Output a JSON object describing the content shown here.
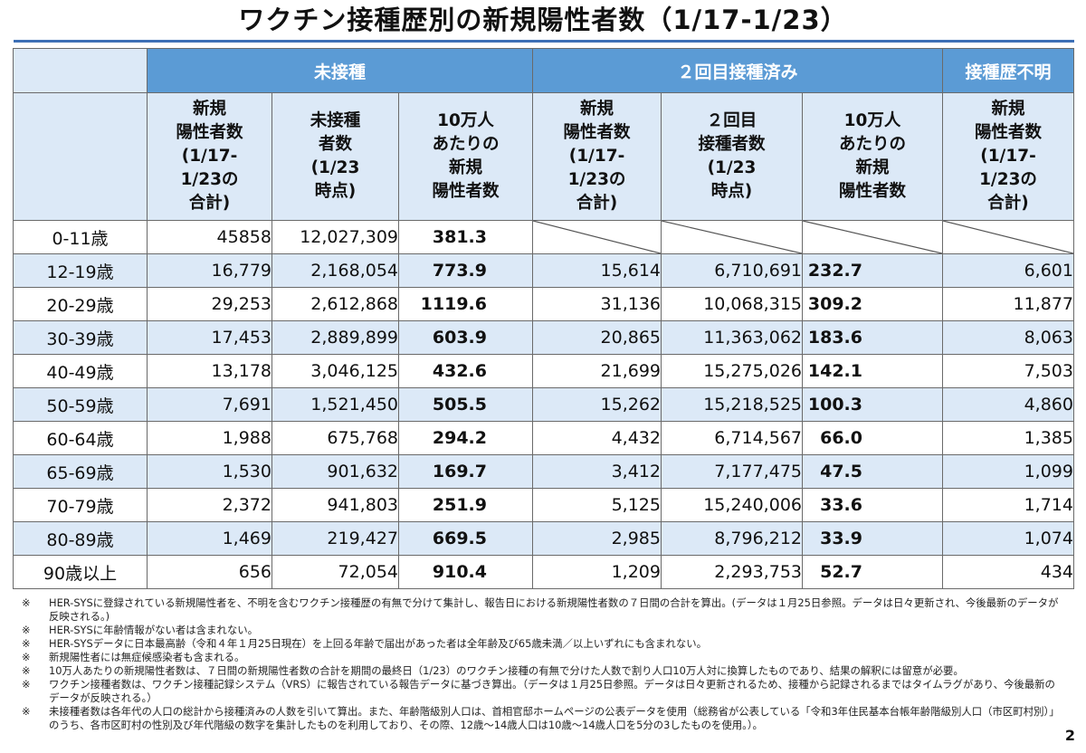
{
  "title": "ワクチン接種歴別の新規陽性者数（1/17-1/23）",
  "groups": {
    "unvaccinated": "未接種",
    "second_dose": "２回目接種済み",
    "unknown": "接種歴不明"
  },
  "columns": {
    "u_new": "新規\n陽性者数\n(1/17-\n1/23の\n合計)",
    "u_pop": "未接種\n者数\n(1/23\n時点)",
    "u_rate": "10万人\nあたりの\n新規\n陽性者数",
    "v_new": "新規\n陽性者数\n(1/17-\n1/23の\n合計)",
    "v_pop": "２回目\n接種者数\n(1/23\n時点)",
    "v_rate": "10万人\nあたりの\n新規\n陽性者数",
    "x_new": "新規\n陽性者数\n(1/17-\n1/23の\n合計)"
  },
  "rows": [
    {
      "age": "0-11歳",
      "u_new": "45858",
      "u_pop": "12,027,309",
      "u_rate": "381.3",
      "v_new": "",
      "v_pop": "",
      "v_rate": "",
      "x_new": ""
    },
    {
      "age": "12-19歳",
      "u_new": "16,779",
      "u_pop": "2,168,054",
      "u_rate": "773.9",
      "v_new": "15,614",
      "v_pop": "6,710,691",
      "v_rate": "232.7",
      "x_new": "6,601"
    },
    {
      "age": "20-29歳",
      "u_new": "29,253",
      "u_pop": "2,612,868",
      "u_rate": "1119.6",
      "v_new": "31,136",
      "v_pop": "10,068,315",
      "v_rate": "309.2",
      "x_new": "11,877"
    },
    {
      "age": "30-39歳",
      "u_new": "17,453",
      "u_pop": "2,889,899",
      "u_rate": "603.9",
      "v_new": "20,865",
      "v_pop": "11,363,062",
      "v_rate": "183.6",
      "x_new": "8,063"
    },
    {
      "age": "40-49歳",
      "u_new": "13,178",
      "u_pop": "3,046,125",
      "u_rate": "432.6",
      "v_new": "21,699",
      "v_pop": "15,275,026",
      "v_rate": "142.1",
      "x_new": "7,503"
    },
    {
      "age": "50-59歳",
      "u_new": "7,691",
      "u_pop": "1,521,450",
      "u_rate": "505.5",
      "v_new": "15,262",
      "v_pop": "15,218,525",
      "v_rate": "100.3",
      "x_new": "4,860"
    },
    {
      "age": "60-64歳",
      "u_new": "1,988",
      "u_pop": "675,768",
      "u_rate": "294.2",
      "v_new": "4,432",
      "v_pop": "6,714,567",
      "v_rate": "66.0",
      "x_new": "1,385"
    },
    {
      "age": "65-69歳",
      "u_new": "1,530",
      "u_pop": "901,632",
      "u_rate": "169.7",
      "v_new": "3,412",
      "v_pop": "7,177,475",
      "v_rate": "47.5",
      "x_new": "1,099"
    },
    {
      "age": "70-79歳",
      "u_new": "2,372",
      "u_pop": "941,803",
      "u_rate": "251.9",
      "v_new": "5,125",
      "v_pop": "15,240,006",
      "v_rate": "33.6",
      "x_new": "1,714"
    },
    {
      "age": "80-89歳",
      "u_new": "1,469",
      "u_pop": "219,427",
      "u_rate": "669.5",
      "v_new": "2,985",
      "v_pop": "8,796,212",
      "v_rate": "33.9",
      "x_new": "1,074"
    },
    {
      "age": "90歳以上",
      "u_new": "656",
      "u_pop": "72,054",
      "u_rate": "910.4",
      "v_new": "1,209",
      "v_pop": "2,293,753",
      "v_rate": "52.7",
      "x_new": "434"
    }
  ],
  "note_mark": "※",
  "notes": [
    "HER-SYSに登録されている新規陽性者を、不明を含むワクチン接種歴の有無で分けて集計し、報告日における新規陽性者数の７日間の合計を算出。(データは１月25日参照。データは日々更新され、今後最新のデータが反映される。)",
    "HER-SYSに年齢情報がない者は含まれない。",
    "HER-SYSデータに日本最高齢（令和４年１月25日現在）を上回る年齢で届出があった者は全年齢及び65歳未満／以上いずれにも含まれない。",
    "新規陽性者には無症候感染者も含まれる。",
    "10万人あたりの新規陽性者数は、７日間の新規陽性者数の合計を期間の最終日（1/23）のワクチン接種の有無で分けた人数で割り人口10万人対に換算したものであり、結果の解釈には留意が必要。",
    "ワクチン接種者数は、ワクチン接種記録システム（VRS）に報告されている報告データに基づき算出。（データは１月25日参照。データは日々更新されるため、接種から記録されるまではタイムラグがあり、今後最新のデータが反映される。）",
    "未接種者数は各年代の人口の総計から接種済みの人数を引いて算出。また、年齢階級別人口は、首相官邸ホームページの公表データを使用（総務省が公表している「令和3年住民基本台帳年齢階級別人口（市区町村別）」のうち、各市区町村の性別及び年代階級の数字を集計したものを利用しており、その際、12歳～14歳人口は10歳～14歳人口を5分の3したものを使用。）。"
  ],
  "page_number": "2"
}
